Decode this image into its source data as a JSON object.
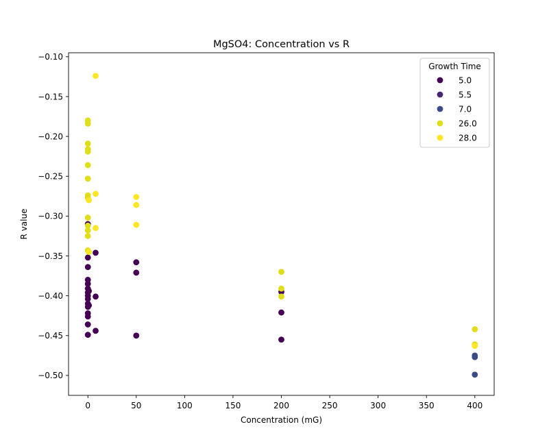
{
  "chart_data": {
    "type": "scatter",
    "title": "MgSO4: Concentration vs R",
    "xlabel": "Concentration (mG)",
    "ylabel": "R value",
    "xlim": [
      -20,
      420
    ],
    "ylim": [
      -0.525,
      -0.095
    ],
    "xticks": [
      0,
      50,
      100,
      150,
      200,
      250,
      300,
      350,
      400
    ],
    "xtick_labels": [
      "0",
      "50",
      "100",
      "150",
      "200",
      "250",
      "300",
      "350",
      "400"
    ],
    "yticks": [
      -0.1,
      -0.15,
      -0.2,
      -0.25,
      -0.3,
      -0.35,
      -0.4,
      -0.45,
      -0.5
    ],
    "ytick_labels": [
      "−0.10",
      "−0.15",
      "−0.20",
      "−0.25",
      "−0.30",
      "−0.35",
      "−0.40",
      "−0.45",
      "−0.50"
    ],
    "grid": false,
    "legend": {
      "title": "Growth Time",
      "placement": "top-right"
    },
    "series": [
      {
        "name": "5.0",
        "color": "#440154",
        "points": [
          [
            0,
            -0.31
          ],
          [
            0,
            -0.352
          ],
          [
            0,
            -0.364
          ],
          [
            0,
            -0.38
          ],
          [
            0,
            -0.385
          ],
          [
            0,
            -0.391
          ],
          [
            0,
            -0.396
          ],
          [
            0,
            -0.4
          ],
          [
            0,
            -0.404
          ],
          [
            0,
            -0.41
          ],
          [
            0,
            -0.414
          ],
          [
            0,
            -0.422
          ],
          [
            0,
            -0.426
          ],
          [
            0,
            -0.436
          ],
          [
            0,
            -0.449
          ],
          [
            1,
            -0.394
          ],
          [
            1,
            -0.412
          ],
          [
            8,
            -0.346
          ],
          [
            8,
            -0.401
          ],
          [
            8,
            -0.444
          ],
          [
            50,
            -0.358
          ],
          [
            50,
            -0.371
          ],
          [
            50,
            -0.45
          ],
          [
            200,
            -0.395
          ],
          [
            200,
            -0.421
          ],
          [
            200,
            -0.455
          ]
        ]
      },
      {
        "name": "5.5",
        "color": "#482475",
        "points": []
      },
      {
        "name": "7.0",
        "color": "#3b4a89",
        "points": [
          [
            400,
            -0.475
          ],
          [
            400,
            -0.477
          ],
          [
            400,
            -0.499
          ]
        ]
      },
      {
        "name": "26.0",
        "color": "#e0dd1a",
        "points": [
          [
            0,
            -0.18
          ],
          [
            0,
            -0.184
          ],
          [
            0,
            -0.209
          ],
          [
            0,
            -0.216
          ],
          [
            0,
            -0.219
          ],
          [
            0,
            -0.236
          ],
          [
            0,
            -0.253
          ],
          [
            0,
            -0.274
          ],
          [
            0,
            -0.277
          ],
          [
            0,
            -0.302
          ],
          [
            0,
            -0.312
          ],
          [
            0,
            -0.318
          ],
          [
            0,
            -0.325
          ],
          [
            0,
            -0.343
          ],
          [
            200,
            -0.37
          ],
          [
            200,
            -0.391
          ],
          [
            200,
            -0.401
          ],
          [
            400,
            -0.442
          ],
          [
            400,
            -0.461
          ]
        ]
      },
      {
        "name": "28.0",
        "color": "#fde725",
        "points": [
          [
            1,
            -0.28
          ],
          [
            1,
            -0.345
          ],
          [
            8,
            -0.124
          ],
          [
            8,
            -0.272
          ],
          [
            8,
            -0.315
          ],
          [
            50,
            -0.276
          ],
          [
            50,
            -0.286
          ],
          [
            50,
            -0.311
          ],
          [
            400,
            -0.463
          ]
        ]
      }
    ]
  }
}
